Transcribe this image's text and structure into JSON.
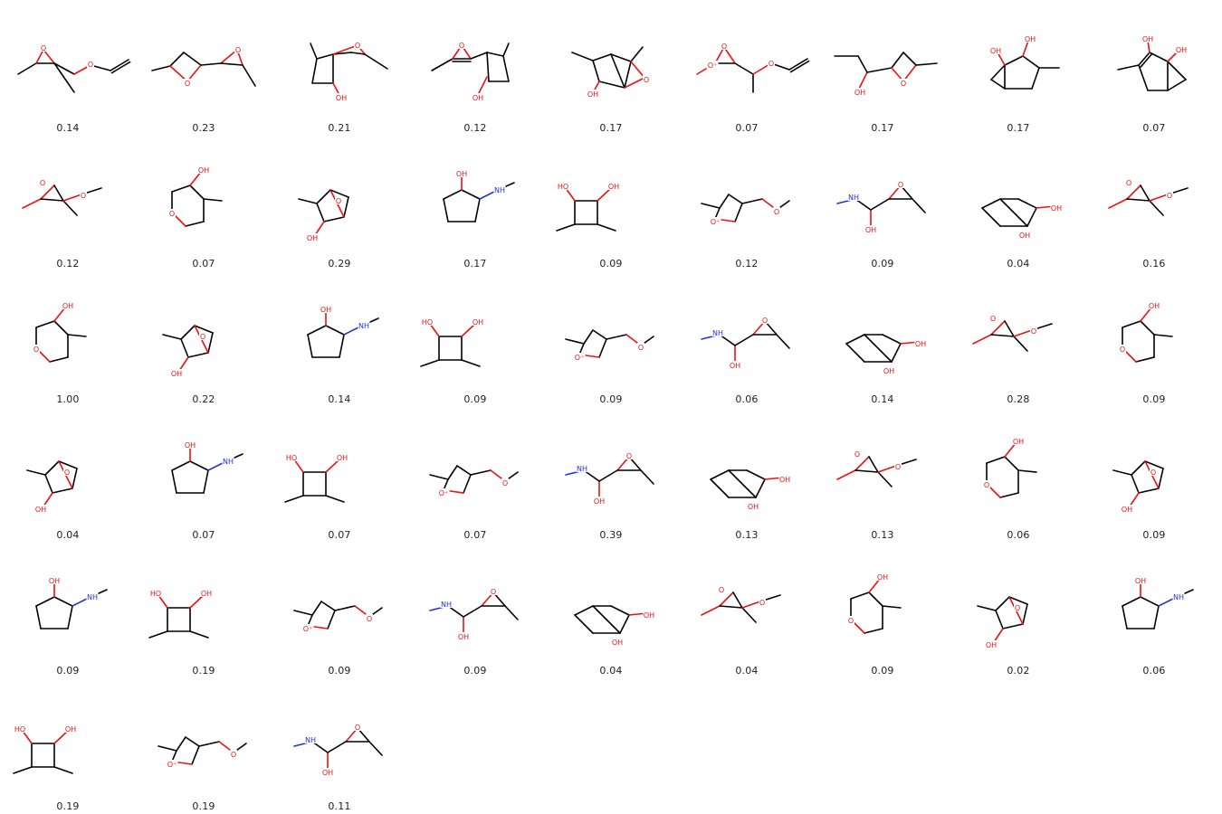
{
  "grid": {
    "columns": 9
  },
  "colors": {
    "oxygen": "#ee1111",
    "nitrogen": "#2233dd",
    "carbon": "#000000",
    "text": "#222222",
    "background": "#ffffff"
  },
  "molecules": [
    {
      "score": "0.14",
      "icon": "molecule-structure"
    },
    {
      "score": "0.23",
      "icon": "molecule-structure"
    },
    {
      "score": "0.21",
      "icon": "molecule-structure"
    },
    {
      "score": "0.12",
      "icon": "molecule-structure"
    },
    {
      "score": "0.17",
      "icon": "molecule-structure"
    },
    {
      "score": "0.07",
      "icon": "molecule-structure"
    },
    {
      "score": "0.17",
      "icon": "molecule-structure"
    },
    {
      "score": "0.17",
      "icon": "molecule-structure"
    },
    {
      "score": "0.07",
      "icon": "molecule-structure"
    },
    {
      "score": "0.12",
      "icon": "molecule-structure"
    },
    {
      "score": "0.07",
      "icon": "molecule-structure"
    },
    {
      "score": "0.29",
      "icon": "molecule-structure"
    },
    {
      "score": "0.17",
      "icon": "molecule-structure"
    },
    {
      "score": "0.09",
      "icon": "molecule-structure"
    },
    {
      "score": "0.12",
      "icon": "molecule-structure"
    },
    {
      "score": "0.09",
      "icon": "molecule-structure"
    },
    {
      "score": "0.04",
      "icon": "molecule-structure"
    },
    {
      "score": "0.16",
      "icon": "molecule-structure"
    },
    {
      "score": "1.00",
      "icon": "molecule-structure"
    },
    {
      "score": "0.22",
      "icon": "molecule-structure"
    },
    {
      "score": "0.14",
      "icon": "molecule-structure"
    },
    {
      "score": "0.09",
      "icon": "molecule-structure"
    },
    {
      "score": "0.09",
      "icon": "molecule-structure"
    },
    {
      "score": "0.06",
      "icon": "molecule-structure"
    },
    {
      "score": "0.14",
      "icon": "molecule-structure"
    },
    {
      "score": "0.28",
      "icon": "molecule-structure"
    },
    {
      "score": "0.09",
      "icon": "molecule-structure"
    },
    {
      "score": "0.04",
      "icon": "molecule-structure"
    },
    {
      "score": "0.07",
      "icon": "molecule-structure"
    },
    {
      "score": "0.07",
      "icon": "molecule-structure"
    },
    {
      "score": "0.07",
      "icon": "molecule-structure"
    },
    {
      "score": "0.39",
      "icon": "molecule-structure"
    },
    {
      "score": "0.13",
      "icon": "molecule-structure"
    },
    {
      "score": "0.13",
      "icon": "molecule-structure"
    },
    {
      "score": "0.06",
      "icon": "molecule-structure"
    },
    {
      "score": "0.09",
      "icon": "molecule-structure"
    },
    {
      "score": "0.09",
      "icon": "molecule-structure"
    },
    {
      "score": "0.19",
      "icon": "molecule-structure"
    },
    {
      "score": "0.09",
      "icon": "molecule-structure"
    },
    {
      "score": "0.09",
      "icon": "molecule-structure"
    },
    {
      "score": "0.04",
      "icon": "molecule-structure"
    },
    {
      "score": "0.04",
      "icon": "molecule-structure"
    },
    {
      "score": "0.09",
      "icon": "molecule-structure"
    },
    {
      "score": "0.02",
      "icon": "molecule-structure"
    },
    {
      "score": "0.06",
      "icon": "molecule-structure"
    },
    {
      "score": "0.19",
      "icon": "molecule-structure"
    },
    {
      "score": "0.19",
      "icon": "molecule-structure"
    },
    {
      "score": "0.11",
      "icon": "molecule-structure"
    }
  ]
}
